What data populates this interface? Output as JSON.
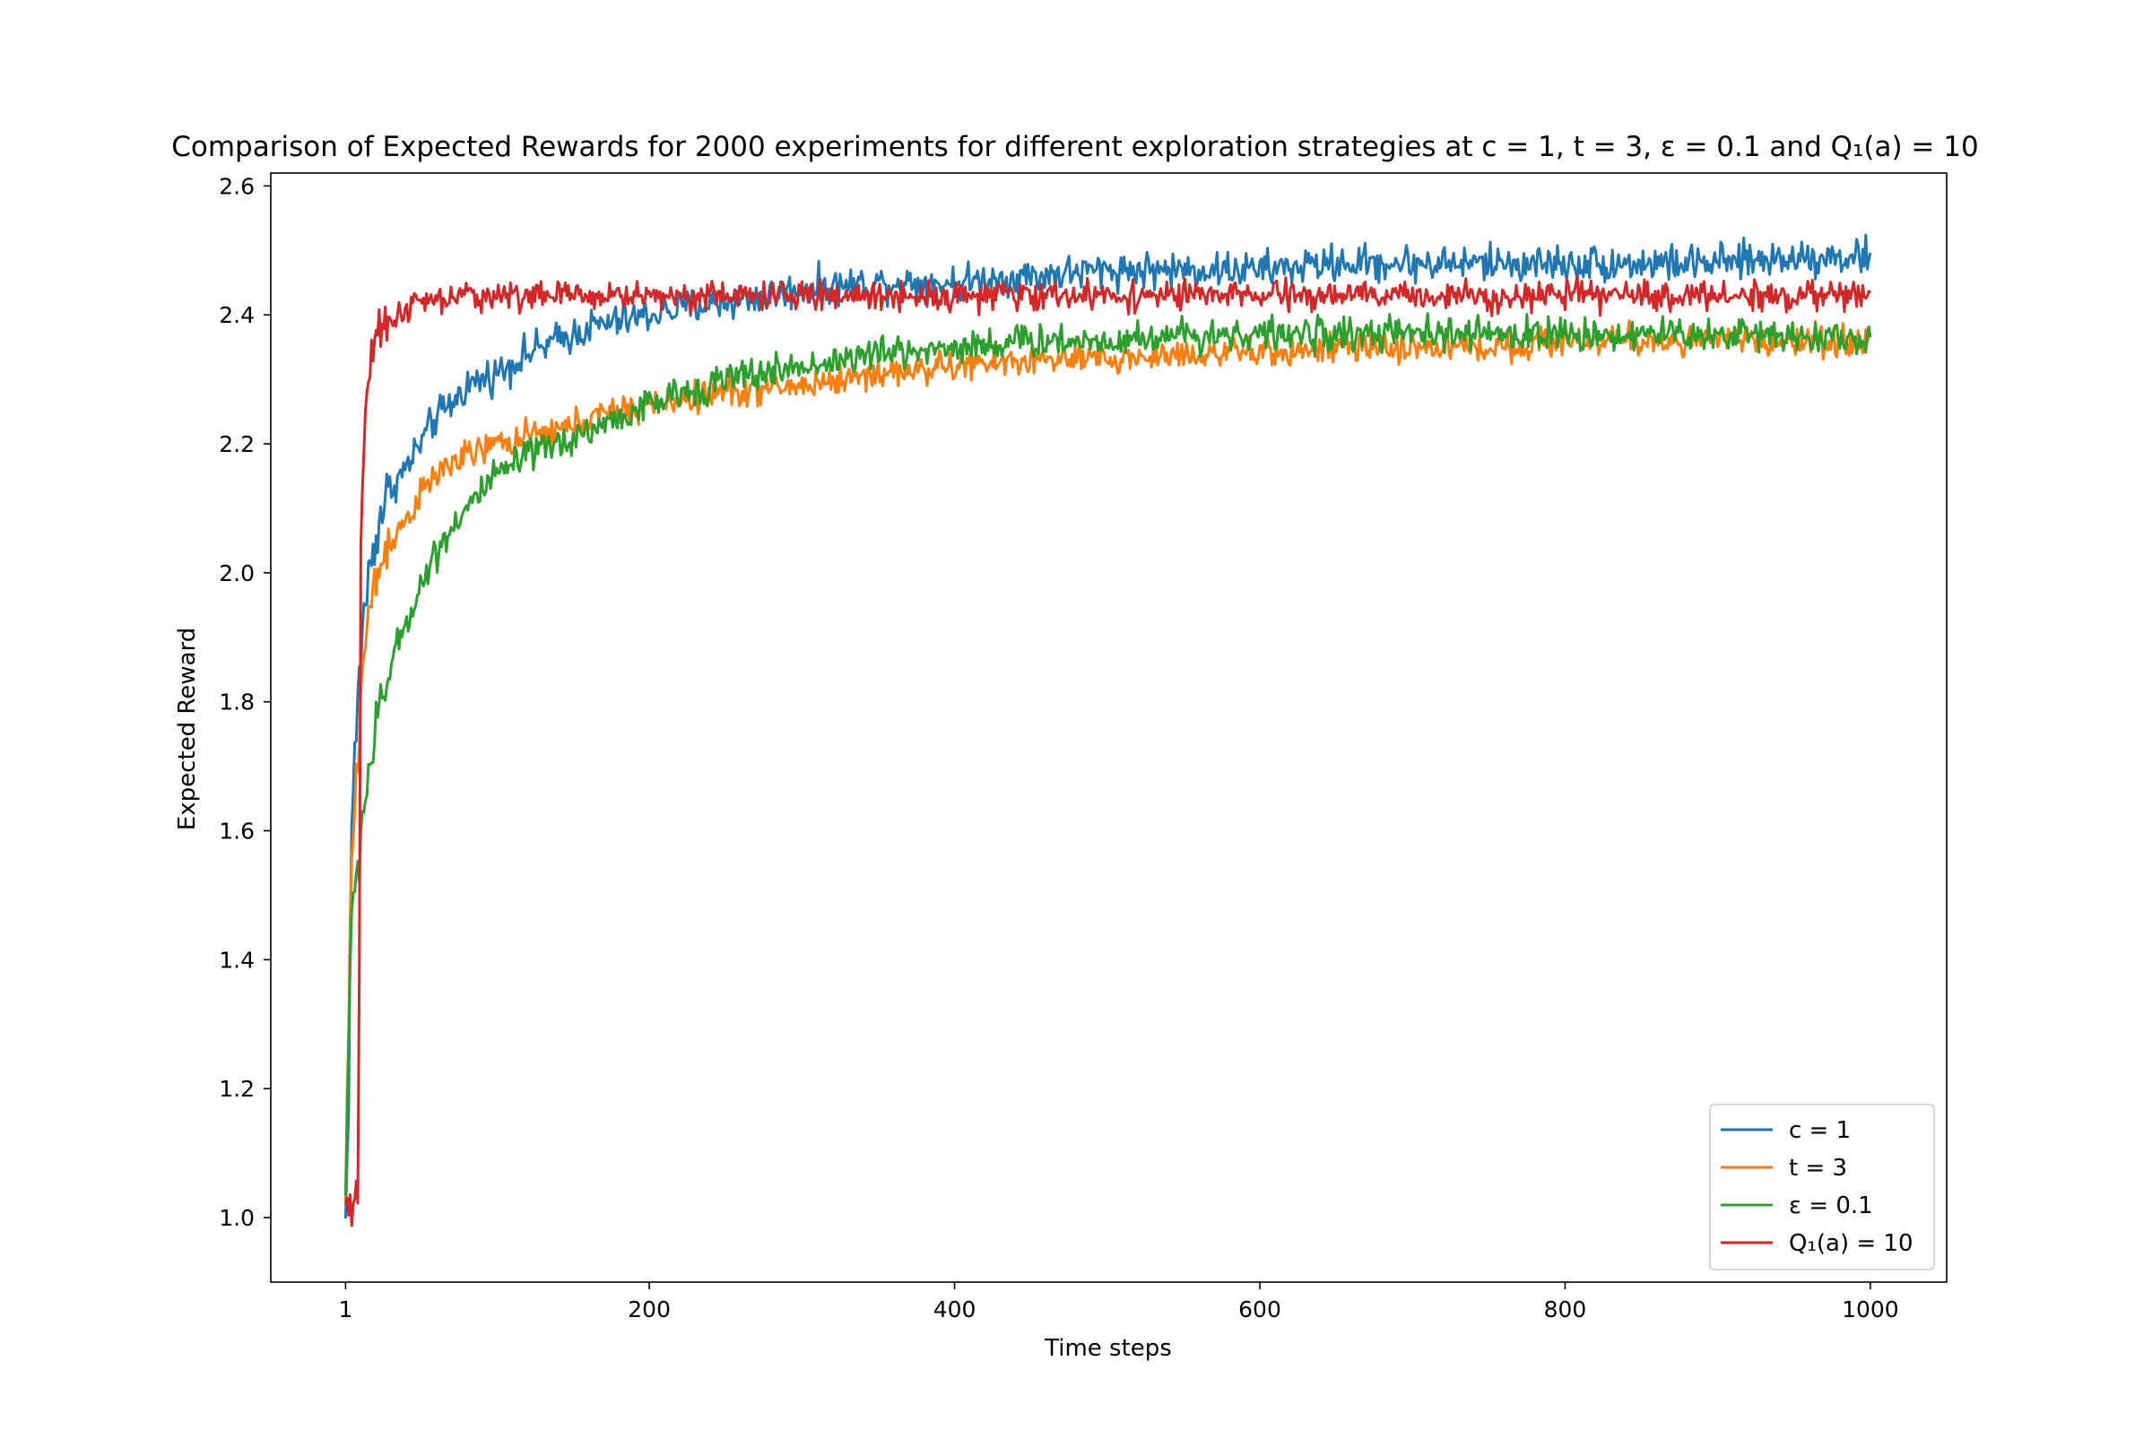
{
  "chart_data": {
    "type": "line",
    "title": "Comparison of Expected Rewards for 2000 experiments for different exploration strategies at c = 1, t = 3, ε = 0.1 and Q₁(a) = 10",
    "xlabel": "Time steps",
    "ylabel": "Expected Reward",
    "xlim": [
      -48,
      1050
    ],
    "ylim": [
      0.9,
      2.62
    ],
    "xticks": [
      {
        "value": 1,
        "label": "1"
      },
      {
        "value": 200,
        "label": "200"
      },
      {
        "value": 400,
        "label": "400"
      },
      {
        "value": 600,
        "label": "600"
      },
      {
        "value": 800,
        "label": "800"
      },
      {
        "value": 1000,
        "label": "1000"
      }
    ],
    "yticks": [
      {
        "value": 1.0,
        "label": "1.0"
      },
      {
        "value": 1.2,
        "label": "1.2"
      },
      {
        "value": 1.4,
        "label": "1.4"
      },
      {
        "value": 1.6,
        "label": "1.6"
      },
      {
        "value": 1.8,
        "label": "1.8"
      },
      {
        "value": 2.0,
        "label": "2.0"
      },
      {
        "value": 2.2,
        "label": "2.2"
      },
      {
        "value": 2.4,
        "label": "2.4"
      },
      {
        "value": 2.6,
        "label": "2.6"
      }
    ],
    "grid": false,
    "legend_position": "bottom-right",
    "series": [
      {
        "name": "c = 1",
        "color": "#1f77b4",
        "x": [
          1,
          3,
          5,
          8,
          12,
          16,
          20,
          25,
          30,
          40,
          50,
          60,
          70,
          80,
          90,
          100,
          120,
          140,
          160,
          180,
          200,
          220,
          250,
          280,
          300,
          350,
          400,
          450,
          500,
          550,
          600,
          650,
          700,
          750,
          800,
          850,
          900,
          950,
          1000
        ],
        "y": [
          0.99,
          1.2,
          1.62,
          1.75,
          1.92,
          1.99,
          2.05,
          2.1,
          2.13,
          2.16,
          2.2,
          2.24,
          2.26,
          2.29,
          2.3,
          2.31,
          2.34,
          2.36,
          2.38,
          2.39,
          2.4,
          2.41,
          2.42,
          2.43,
          2.44,
          2.45,
          2.45,
          2.46,
          2.47,
          2.47,
          2.47,
          2.48,
          2.48,
          2.48,
          2.48,
          2.48,
          2.48,
          2.49,
          2.49
        ],
        "noise": 0.014
      },
      {
        "name": "t = 3",
        "color": "#ff7f0e",
        "x": [
          1,
          3,
          5,
          8,
          12,
          16,
          20,
          25,
          30,
          40,
          50,
          60,
          70,
          80,
          100,
          120,
          140,
          160,
          180,
          200,
          250,
          300,
          350,
          400,
          450,
          500,
          550,
          600,
          650,
          700,
          750,
          800,
          850,
          900,
          950,
          1000
        ],
        "y": [
          1.02,
          1.3,
          1.55,
          1.68,
          1.85,
          1.93,
          1.98,
          2.02,
          2.05,
          2.08,
          2.12,
          2.15,
          2.17,
          2.18,
          2.2,
          2.21,
          2.22,
          2.24,
          2.25,
          2.26,
          2.28,
          2.29,
          2.31,
          2.32,
          2.33,
          2.33,
          2.34,
          2.34,
          2.35,
          2.35,
          2.35,
          2.36,
          2.36,
          2.36,
          2.36,
          2.36
        ],
        "noise": 0.012
      },
      {
        "name": "ε = 0.1",
        "color": "#2ca02c",
        "x": [
          1,
          3,
          5,
          8,
          12,
          16,
          20,
          25,
          30,
          40,
          50,
          60,
          70,
          80,
          100,
          120,
          140,
          160,
          180,
          200,
          250,
          300,
          350,
          400,
          450,
          500,
          550,
          600,
          650,
          700,
          750,
          800,
          850,
          900,
          950,
          1000
        ],
        "y": [
          1.03,
          1.3,
          1.45,
          1.52,
          1.62,
          1.69,
          1.74,
          1.8,
          1.85,
          1.92,
          1.98,
          2.03,
          2.07,
          2.1,
          2.15,
          2.18,
          2.2,
          2.22,
          2.24,
          2.26,
          2.3,
          2.32,
          2.34,
          2.35,
          2.36,
          2.36,
          2.37,
          2.37,
          2.37,
          2.37,
          2.37,
          2.37,
          2.37,
          2.37,
          2.37,
          2.36
        ],
        "noise": 0.013
      },
      {
        "name": "Q₁(a) = 10",
        "color": "#d62728",
        "x": [
          1,
          3,
          5,
          7,
          9,
          10,
          11,
          12,
          14,
          16,
          18,
          20,
          25,
          30,
          40,
          50,
          60,
          80,
          100,
          150,
          200,
          250,
          300,
          400,
          500,
          600,
          700,
          800,
          900,
          1000
        ],
        "y": [
          1.02,
          1.01,
          0.99,
          1.01,
          1.02,
          1.4,
          2.05,
          2.15,
          2.26,
          2.29,
          2.33,
          2.35,
          2.37,
          2.39,
          2.41,
          2.42,
          2.42,
          2.43,
          2.43,
          2.43,
          2.43,
          2.43,
          2.43,
          2.43,
          2.43,
          2.43,
          2.43,
          2.43,
          2.43,
          2.43
        ],
        "noise": 0.011
      }
    ]
  }
}
